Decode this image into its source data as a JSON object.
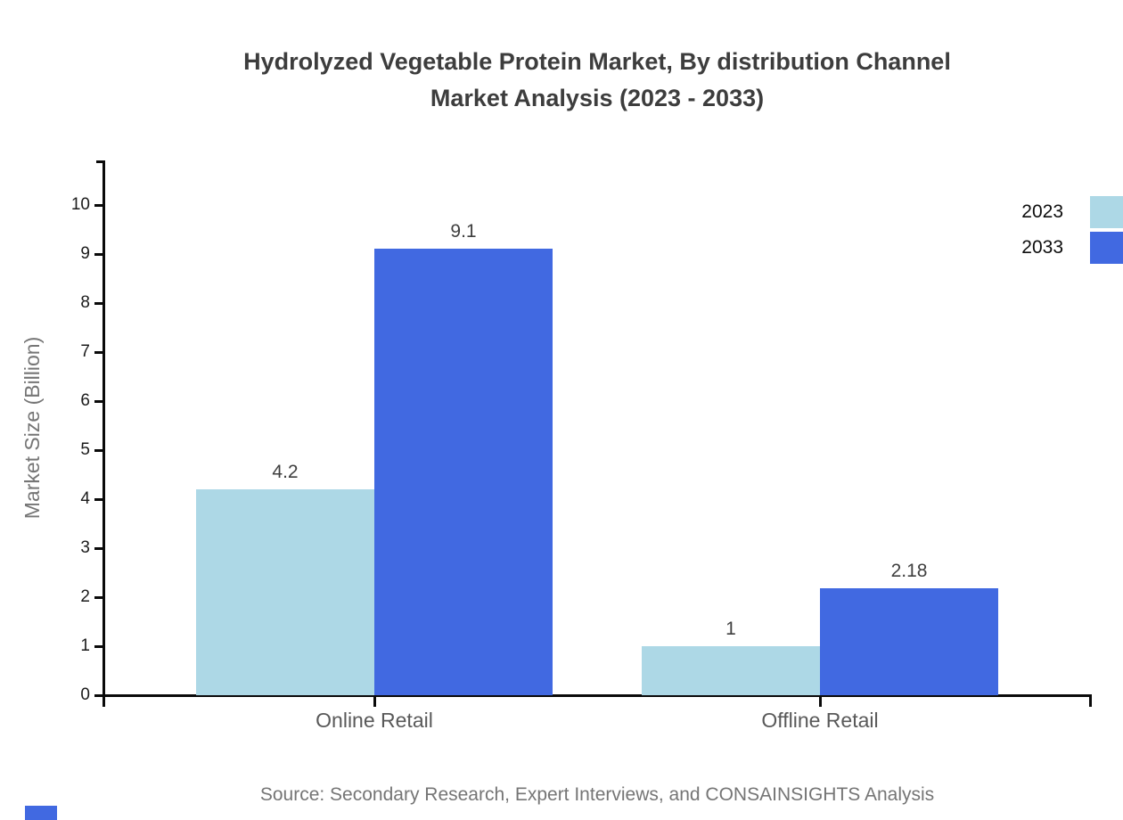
{
  "chart_data": {
    "type": "bar",
    "title_line1": "Hydrolyzed Vegetable Protein Market, By distribution Channel",
    "title_line2": "Market Analysis (2023 - 2033)",
    "ylabel": "Market Size (Billion)",
    "categories": [
      "Online Retail",
      "Offline Retail"
    ],
    "series": [
      {
        "name": "2023",
        "color": "#ADD8E6",
        "values": [
          4.2,
          1
        ]
      },
      {
        "name": "2033",
        "color": "#4169E1",
        "values": [
          9.1,
          2.18
        ]
      }
    ],
    "ylim": [
      0,
      10
    ],
    "yticks": [
      0,
      1,
      2,
      3,
      4,
      5,
      6,
      7,
      8,
      9,
      10
    ],
    "grid": false,
    "legend_position": "top-right",
    "legend": [
      {
        "label": "2023",
        "color": "#ADD8E6"
      },
      {
        "label": "2033",
        "color": "#4169E1"
      }
    ],
    "source": "Source: Secondary Research, Expert Interviews, and CONSAINSIGHTS Analysis",
    "axis_color": "#0a0a0a",
    "watermark_color": "#4169E1"
  }
}
